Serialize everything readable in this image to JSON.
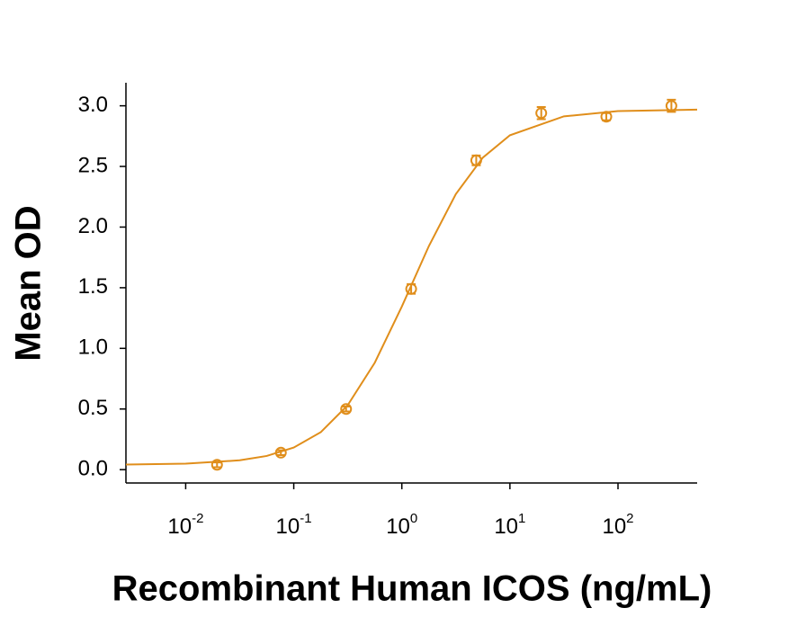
{
  "chart_data": {
    "type": "scatter",
    "x_label": "Recombinant Human ICOS (ng/mL)",
    "y_label": "Mean OD",
    "x_scale": "log",
    "color": "#e08e1b",
    "xlim": [
      0.0028,
      540
    ],
    "ylim": [
      -0.11,
      3.19
    ],
    "xticks": [
      {
        "value": 0.01,
        "label": "10",
        "exponent": "-2"
      },
      {
        "value": 0.1,
        "label": "10",
        "exponent": "-1"
      },
      {
        "value": 1,
        "label": "10",
        "exponent": "0"
      },
      {
        "value": 10,
        "label": "10",
        "exponent": "1"
      },
      {
        "value": 100,
        "label": "10",
        "exponent": "2"
      }
    ],
    "yticks": [
      {
        "value": 0,
        "label": "0.0"
      },
      {
        "value": 0.5,
        "label": "0.5"
      },
      {
        "value": 1,
        "label": "1.0"
      },
      {
        "value": 1.5,
        "label": "1.5"
      },
      {
        "value": 2,
        "label": "2.0"
      },
      {
        "value": 2.5,
        "label": "2.5"
      },
      {
        "value": 3,
        "label": "3.0"
      }
    ],
    "x": [
      0.0195,
      0.076,
      0.305,
      1.22,
      4.88,
      19.5,
      78,
      312
    ],
    "values": [
      0.04,
      0.14,
      0.5,
      1.49,
      2.55,
      2.94,
      2.91,
      3.0
    ],
    "errors": [
      0.02,
      0.02,
      0.02,
      0.04,
      0.04,
      0.05,
      0.03,
      0.05
    ],
    "fit": {
      "x": [
        0.0028,
        0.01,
        0.0316,
        0.0562,
        0.1,
        0.178,
        0.316,
        0.562,
        1,
        1.78,
        3.16,
        5.62,
        10,
        31.6,
        100,
        540
      ],
      "values": [
        0.042,
        0.049,
        0.077,
        0.113,
        0.182,
        0.309,
        0.532,
        0.882,
        1.345,
        1.844,
        2.272,
        2.573,
        2.757,
        2.913,
        2.956,
        2.968
      ]
    }
  }
}
